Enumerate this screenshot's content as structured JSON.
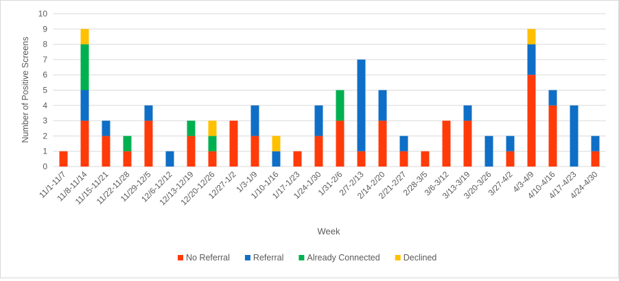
{
  "chart_data": {
    "type": "bar",
    "stacked": true,
    "title": "",
    "xlabel": "Week",
    "ylabel": "Number of Positive Screens",
    "ylim": [
      0,
      10
    ],
    "yticks": [
      0,
      1,
      2,
      3,
      4,
      5,
      6,
      7,
      8,
      9,
      10
    ],
    "grid": true,
    "legend_position": "bottom",
    "categories": [
      "11/1-11/7",
      "11/8-11/14",
      "11/15-11/21",
      "11/22-11/28",
      "11/29-12/5",
      "12/6-12/12",
      "12/13-12/19",
      "12/20-12/26",
      "12/27-1/2",
      "1/3-1/9",
      "1/10-1/16",
      "1/17-1/23",
      "1/24-1/30",
      "1/31-2/6",
      "2/7-2/13",
      "2/14-2/20",
      "2/21-2/27",
      "2/28-3/5",
      "3/6-3/12",
      "3/13-3/19",
      "3/20-3/26",
      "3/27-4/2",
      "4/3-4/9",
      "4/10-4/16",
      "4/17-4/23",
      "4/24-4/30"
    ],
    "series": [
      {
        "name": "No Referral",
        "color": "#ff3b0a",
        "values": [
          1,
          3,
          2,
          1,
          3,
          0,
          2,
          1,
          3,
          2,
          0,
          1,
          2,
          3,
          1,
          3,
          1,
          1,
          3,
          3,
          0,
          1,
          6,
          4,
          0,
          1
        ]
      },
      {
        "name": "Referral",
        "color": "#0f6fc6",
        "values": [
          0,
          2,
          1,
          0,
          1,
          1,
          0,
          0,
          0,
          2,
          1,
          0,
          2,
          0,
          6,
          2,
          1,
          0,
          0,
          1,
          2,
          1,
          2,
          1,
          4,
          1
        ]
      },
      {
        "name": "Already Connected",
        "color": "#00b050",
        "values": [
          0,
          3,
          0,
          1,
          0,
          0,
          1,
          1,
          0,
          0,
          0,
          0,
          0,
          2,
          0,
          0,
          0,
          0,
          0,
          0,
          0,
          0,
          0,
          0,
          0,
          0
        ]
      },
      {
        "name": "Declined",
        "color": "#ffc000",
        "values": [
          0,
          1,
          0,
          0,
          0,
          0,
          0,
          1,
          0,
          0,
          1,
          0,
          0,
          0,
          0,
          0,
          0,
          0,
          0,
          0,
          0,
          0,
          1,
          0,
          0,
          0
        ]
      }
    ]
  }
}
